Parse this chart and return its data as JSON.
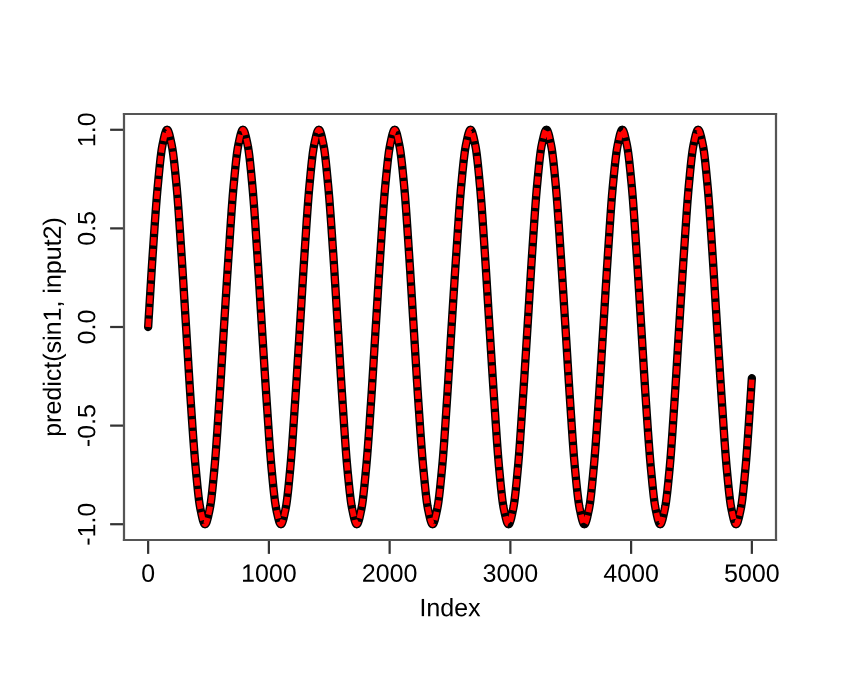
{
  "chart_data": {
    "type": "line",
    "xlabel": "Index",
    "ylabel": "predict(sin1, input2)",
    "x": [
      0,
      39,
      79,
      118,
      157,
      196,
      236,
      275,
      314,
      353,
      393,
      432,
      471,
      511,
      550,
      589,
      628,
      668,
      707,
      746,
      785,
      825,
      864,
      903,
      942,
      982,
      1021,
      1060,
      1100,
      1139,
      1178,
      1217,
      1257,
      1296,
      1335,
      1374,
      1414,
      1453,
      1492,
      1532,
      1571,
      1610,
      1649,
      1689,
      1728,
      1767,
      1806,
      1846,
      1885,
      1924,
      1963,
      2003,
      2042,
      2081,
      2121,
      2160,
      2199,
      2238,
      2278,
      2317,
      2356,
      2395,
      2435,
      2474,
      2513,
      2553,
      2592,
      2631,
      2670,
      2710,
      2749,
      2788,
      2827,
      2867,
      2906,
      2945,
      2985,
      3024,
      3063,
      3102,
      3142,
      3181,
      3220,
      3259,
      3299,
      3338,
      3377,
      3416,
      3456,
      3495,
      3534,
      3574,
      3613,
      3652,
      3691,
      3731,
      3770,
      3809,
      3848,
      3888,
      3927,
      3966,
      4006,
      4045,
      4084,
      4123,
      4163,
      4202,
      4241,
      4280,
      4320,
      4359,
      4398,
      4438,
      4477,
      4516,
      4555,
      4595,
      4634,
      4673,
      4712,
      4752,
      4791,
      4830,
      4869,
      4909,
      4948,
      4987,
      5000
    ],
    "series": [
      {
        "color": "#000000",
        "line_style": "solid",
        "values": [
          0,
          0.38,
          0.71,
          0.92,
          1,
          0.92,
          0.71,
          0.38,
          0,
          -0.38,
          -0.71,
          -0.92,
          -1,
          -0.92,
          -0.71,
          -0.38,
          0,
          0.38,
          0.71,
          0.92,
          1,
          0.92,
          0.71,
          0.38,
          0,
          -0.38,
          -0.71,
          -0.92,
          -1,
          -0.92,
          -0.71,
          -0.38,
          0,
          0.38,
          0.71,
          0.92,
          1,
          0.92,
          0.71,
          0.38,
          0,
          -0.38,
          -0.71,
          -0.92,
          -1,
          -0.92,
          -0.71,
          -0.38,
          0,
          0.38,
          0.71,
          0.92,
          1,
          0.92,
          0.71,
          0.38,
          0,
          -0.38,
          -0.71,
          -0.92,
          -1,
          -0.92,
          -0.71,
          -0.38,
          0,
          0.38,
          0.71,
          0.92,
          1,
          0.92,
          0.71,
          0.38,
          0,
          -0.38,
          -0.71,
          -0.92,
          -1,
          -0.92,
          -0.71,
          -0.38,
          0,
          0.38,
          0.71,
          0.92,
          1,
          0.92,
          0.71,
          0.38,
          0,
          -0.38,
          -0.71,
          -0.92,
          -1,
          -0.92,
          -0.71,
          -0.38,
          0,
          0.38,
          0.71,
          0.92,
          1,
          0.92,
          0.71,
          0.38,
          0,
          -0.38,
          -0.71,
          -0.92,
          -1,
          -0.92,
          -0.71,
          -0.38,
          0,
          0.38,
          0.71,
          0.92,
          1,
          0.92,
          0.71,
          0.38,
          0,
          -0.38,
          -0.71,
          -0.92,
          -1,
          -0.92,
          -0.71,
          -0.38,
          -0.26
        ]
      },
      {
        "color": "#ff0000",
        "line_style": "dashed",
        "values": [
          0,
          0.38,
          0.71,
          0.92,
          1,
          0.92,
          0.71,
          0.38,
          0,
          -0.38,
          -0.71,
          -0.92,
          -1,
          -0.92,
          -0.71,
          -0.38,
          0,
          0.38,
          0.71,
          0.92,
          1,
          0.92,
          0.71,
          0.38,
          0,
          -0.38,
          -0.71,
          -0.92,
          -1,
          -0.92,
          -0.71,
          -0.38,
          0,
          0.38,
          0.71,
          0.92,
          1,
          0.92,
          0.71,
          0.38,
          0,
          -0.38,
          -0.71,
          -0.92,
          -1,
          -0.92,
          -0.71,
          -0.38,
          0,
          0.38,
          0.71,
          0.92,
          1,
          0.92,
          0.71,
          0.38,
          0,
          -0.38,
          -0.71,
          -0.92,
          -1,
          -0.92,
          -0.71,
          -0.38,
          0,
          0.38,
          0.71,
          0.92,
          1,
          0.92,
          0.71,
          0.38,
          0,
          -0.38,
          -0.71,
          -0.92,
          -1,
          -0.92,
          -0.71,
          -0.38,
          0,
          0.38,
          0.71,
          0.92,
          1,
          0.92,
          0.71,
          0.38,
          0,
          -0.38,
          -0.71,
          -0.92,
          -1,
          -0.92,
          -0.71,
          -0.38,
          0,
          0.38,
          0.71,
          0.92,
          1,
          0.92,
          0.71,
          0.38,
          0,
          -0.38,
          -0.71,
          -0.92,
          -1,
          -0.92,
          -0.71,
          -0.38,
          0,
          0.38,
          0.71,
          0.92,
          1,
          0.92,
          0.71,
          0.38,
          0,
          -0.38,
          -0.71,
          -0.92,
          -1,
          -0.92,
          -0.71,
          -0.38,
          -0.26
        ]
      }
    ],
    "xlim": [
      -200,
      5200
    ],
    "ylim": [
      -1.08,
      1.08
    ],
    "xticks": [
      0,
      1000,
      2000,
      3000,
      4000,
      5000
    ],
    "yticks": [
      {
        "value": -1,
        "label": "-1.0"
      },
      {
        "value": -0.5,
        "label": "-0.5"
      },
      {
        "value": 0,
        "label": "0.0"
      },
      {
        "value": 0.5,
        "label": "0.5"
      },
      {
        "value": 1,
        "label": "1.0"
      }
    ],
    "grid": false,
    "legend": false
  }
}
